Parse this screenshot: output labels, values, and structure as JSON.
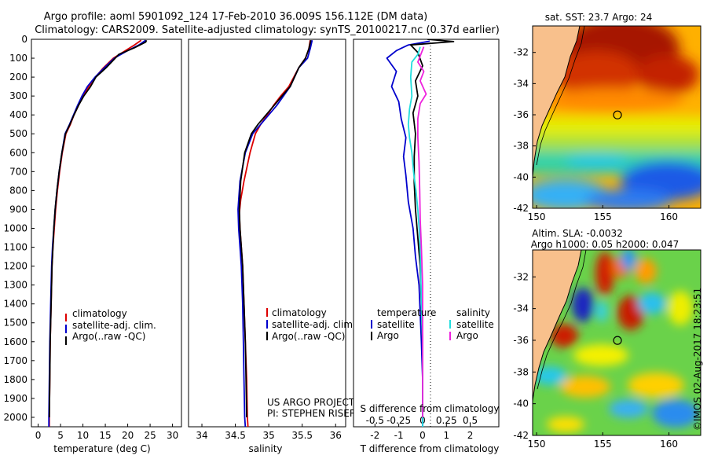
{
  "header": {
    "line1": "Argo profile: aoml 5901092_124 17-Feb-2010 36.009S 156.112E (DM data)",
    "line2": "Climatology: CARS2009. Satellite-adjusted climatology: synTS_20100217.nc (0.37d earlier)"
  },
  "colors": {
    "climatology": "#dd0000",
    "satellite": "#0000cc",
    "argo": "#000000",
    "sal_satellite": "#22dddd",
    "sal_argo": "#ee22dd"
  },
  "depth_axis": {
    "ylim": [
      0,
      2050
    ],
    "ticks": [
      0,
      100,
      200,
      300,
      400,
      500,
      600,
      700,
      800,
      900,
      1000,
      1100,
      1200,
      1300,
      1400,
      1500,
      1600,
      1700,
      1800,
      1900,
      2000
    ]
  },
  "chart_data": [
    {
      "type": "line",
      "id": "temperature",
      "xlabel": "temperature (deg C)",
      "ylabel": "",
      "xlim": [
        -1.5,
        32
      ],
      "ylim": [
        0,
        2050
      ],
      "xticks": [
        0,
        5,
        10,
        15,
        20,
        25,
        30
      ],
      "legend_position": "lower-center",
      "legend": [
        "climatology",
        "satellite-adj. clim.",
        "Argo(..raw -QC)"
      ],
      "series": [
        {
          "name": "climatology",
          "color": "#dd0000",
          "x": [
            23.0,
            21.5,
            19.5,
            16.8,
            14.6,
            12.8,
            11.3,
            10.0,
            9.0,
            8.0,
            7.2,
            6.2,
            5.4,
            4.8,
            4.3,
            3.9,
            3.6,
            3.3,
            3.1,
            2.9,
            2.7,
            2.6,
            2.5,
            2.5
          ],
          "y": [
            5,
            30,
            60,
            100,
            150,
            200,
            250,
            300,
            350,
            400,
            450,
            500,
            600,
            700,
            800,
            900,
            1000,
            1100,
            1200,
            1400,
            1600,
            1800,
            2000,
            2050
          ]
        },
        {
          "name": "satellite-adj. clim.",
          "color": "#0000cc",
          "x": [
            24.0,
            22.5,
            20.0,
            17.0,
            14.8,
            12.7,
            11.0,
            9.8,
            8.8,
            7.9,
            7.0,
            6.0,
            5.3,
            4.7,
            4.2,
            3.8,
            3.5,
            3.2,
            3.0,
            2.8,
            2.6,
            2.5,
            2.4,
            2.4
          ],
          "y": [
            5,
            30,
            60,
            100,
            150,
            200,
            250,
            300,
            350,
            400,
            450,
            500,
            600,
            700,
            800,
            900,
            1000,
            1100,
            1200,
            1400,
            1600,
            1800,
            2000,
            2050
          ]
        },
        {
          "name": "Argo(..raw -QC)",
          "color": "#000000",
          "x": [
            24.2,
            24.0,
            21.5,
            18.0,
            15.2,
            12.9,
            11.7,
            10.2,
            9.0,
            8.0,
            7.1,
            6.1,
            5.3,
            4.7,
            4.2,
            3.8,
            3.5,
            3.3,
            3.1,
            2.9,
            2.7,
            2.6,
            2.5
          ],
          "y": [
            5,
            15,
            45,
            80,
            150,
            200,
            250,
            300,
            350,
            400,
            450,
            500,
            600,
            700,
            800,
            900,
            1000,
            1100,
            1200,
            1400,
            1600,
            1800,
            2000
          ]
        }
      ]
    },
    {
      "type": "line",
      "id": "salinity",
      "xlabel": "salinity",
      "ylabel": "",
      "xlim": [
        33.8,
        36.15
      ],
      "ylim": [
        0,
        2050
      ],
      "xticks": [
        34,
        34.5,
        35,
        35.5,
        36
      ],
      "xtick_labels": [
        "34",
        "34.5",
        "35",
        "35.5",
        "36"
      ],
      "legend_position": "lower-center",
      "legend": [
        "climatology",
        "satellite-adj. clim.",
        "Argo(..raw -QC)"
      ],
      "annotation": [
        "US ARGO PROJECT",
        "PI: STEPHEN RISER"
      ],
      "series": [
        {
          "name": "climatology",
          "color": "#dd0000",
          "x": [
            35.62,
            35.6,
            35.55,
            35.45,
            35.3,
            35.18,
            35.07,
            34.98,
            34.88,
            34.8,
            34.72,
            34.63,
            34.58,
            34.56,
            34.57,
            34.59,
            34.61,
            34.63,
            34.65,
            34.67,
            34.68,
            34.69
          ],
          "y": [
            5,
            50,
            100,
            150,
            250,
            300,
            350,
            400,
            450,
            500,
            600,
            750,
            850,
            920,
            1000,
            1100,
            1200,
            1400,
            1600,
            1800,
            2000,
            2050
          ]
        },
        {
          "name": "satellite-adj. clim.",
          "color": "#0000cc",
          "x": [
            35.65,
            35.62,
            35.58,
            35.45,
            35.32,
            35.22,
            35.12,
            35.0,
            34.88,
            34.76,
            34.65,
            34.57,
            34.54,
            34.55,
            34.57,
            34.59,
            34.61,
            34.62,
            34.63,
            34.64,
            34.65
          ],
          "y": [
            5,
            50,
            100,
            150,
            250,
            300,
            350,
            400,
            450,
            500,
            600,
            750,
            900,
            1000,
            1100,
            1200,
            1400,
            1600,
            1800,
            2000,
            2050
          ]
        },
        {
          "name": "Argo(..raw -QC)",
          "color": "#000000",
          "x": [
            35.63,
            35.6,
            35.55,
            35.45,
            35.32,
            35.2,
            35.08,
            34.96,
            34.84,
            34.74,
            34.64,
            34.58,
            34.56,
            34.57,
            34.59,
            34.61,
            34.63,
            34.65,
            34.66,
            34.67
          ],
          "y": [
            5,
            50,
            100,
            150,
            250,
            300,
            350,
            400,
            450,
            500,
            600,
            750,
            900,
            1000,
            1100,
            1200,
            1400,
            1600,
            1800,
            2000
          ]
        }
      ]
    },
    {
      "type": "line",
      "id": "difference",
      "xlabel": "T difference from climatology",
      "xlabel_top": "S difference from climatology",
      "xlim": [
        -2.9,
        3.2
      ],
      "ylim": [
        0,
        2050
      ],
      "xticks_bottom": [
        -2,
        -1,
        0,
        1,
        2
      ],
      "xticks_top": [
        -0.5,
        -0.25,
        0,
        0.25,
        0.5
      ],
      "xticks_top_labels": [
        "-0.5",
        "-0.25",
        "0",
        "0.25",
        "0.5"
      ],
      "legend_position": "lower-center",
      "legend_temperature_title": "temperature",
      "legend_salinity_title": "salinity",
      "legend_temperature": [
        "satellite",
        "Argo"
      ],
      "legend_salinity": [
        "satellite",
        "Argo"
      ],
      "series": [
        {
          "name": "T satellite",
          "color": "#0000cc",
          "x": [
            0.3,
            -0.6,
            -1.1,
            -1.5,
            -1.1,
            -1.3,
            -1.0,
            -0.9,
            -0.7,
            -0.8,
            -0.7,
            -0.6,
            -0.4,
            -0.3,
            -0.15,
            -0.1,
            -0.05,
            0,
            0
          ],
          "y": [
            10,
            30,
            60,
            100,
            170,
            250,
            330,
            420,
            520,
            620,
            720,
            860,
            1000,
            1150,
            1300,
            1450,
            1600,
            1800,
            2050
          ]
        },
        {
          "name": "T Argo",
          "color": "#000000",
          "x": [
            0.2,
            1.3,
            -0.5,
            -0.2,
            0.0,
            -0.3,
            -0.2,
            -0.4,
            -0.3,
            -0.35,
            -0.35,
            -0.3,
            -0.2,
            -0.1,
            -0.05,
            0,
            0,
            0
          ],
          "y": [
            0,
            12,
            30,
            70,
            140,
            220,
            300,
            390,
            500,
            620,
            760,
            900,
            1050,
            1200,
            1400,
            1600,
            1800,
            2000
          ]
        },
        {
          "name": "S satellite",
          "color": "#22dddd",
          "x": [
            -0.1,
            -0.2,
            -0.45,
            -0.5,
            -0.45,
            -0.55,
            -0.6,
            -0.55,
            -0.45,
            -0.38,
            -0.28,
            -0.2,
            -0.12,
            -0.08,
            -0.05,
            0,
            0
          ],
          "y": [
            40,
            80,
            120,
            200,
            300,
            370,
            450,
            520,
            600,
            700,
            800,
            900,
            1050,
            1200,
            1400,
            1600,
            2050
          ]
        },
        {
          "name": "S Argo",
          "color": "#ee22dd",
          "x": [
            0.05,
            -0.2,
            0.05,
            -0.1,
            0.15,
            -0.1,
            -0.2,
            -0.2,
            -0.15,
            -0.12,
            -0.1,
            -0.05,
            0,
            0
          ],
          "y": [
            40,
            120,
            170,
            220,
            290,
            340,
            420,
            520,
            650,
            800,
            950,
            1100,
            1300,
            2000
          ]
        }
      ]
    },
    {
      "type": "heatmap",
      "id": "sst_map",
      "title": "sat. SST: 23.7 Argo: 24",
      "xlim": [
        149.7,
        162.4
      ],
      "ylim": [
        -42,
        -30.3
      ],
      "xticks": [
        150,
        155,
        160
      ],
      "yticks": [
        -32,
        -34,
        -36,
        -38,
        -40,
        -42
      ],
      "argo_marker": {
        "lon": 156.112,
        "lat": -36.009
      }
    },
    {
      "type": "heatmap",
      "id": "sla_map",
      "title": "Altim. SLA: -0.0032",
      "subtitle": "Argo h1000: 0.05 h2000: 0.047",
      "xlim": [
        149.7,
        162.4
      ],
      "ylim": [
        -42,
        -30.3
      ],
      "xticks": [
        150,
        155,
        160
      ],
      "yticks": [
        -32,
        -34,
        -36,
        -38,
        -40,
        -42
      ],
      "argo_marker": {
        "lon": 156.112,
        "lat": -36.009
      }
    }
  ],
  "footer": {
    "credit": "©IMOS 02-Aug-2017 18:23:51"
  }
}
